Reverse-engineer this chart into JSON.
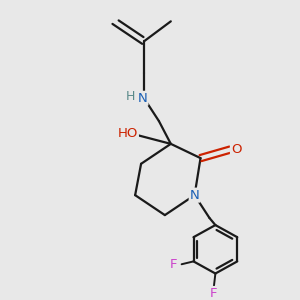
{
  "background_color": "#e8e8e8",
  "bond_color": "#1a1a1a",
  "atom_colors": {
    "N": "#1a5fb5",
    "O": "#cc2200",
    "F": "#cc44cc",
    "H": "#5a8a8a",
    "C": "#1a1a1a"
  },
  "figsize": [
    3.0,
    3.0
  ],
  "dpi": 100
}
